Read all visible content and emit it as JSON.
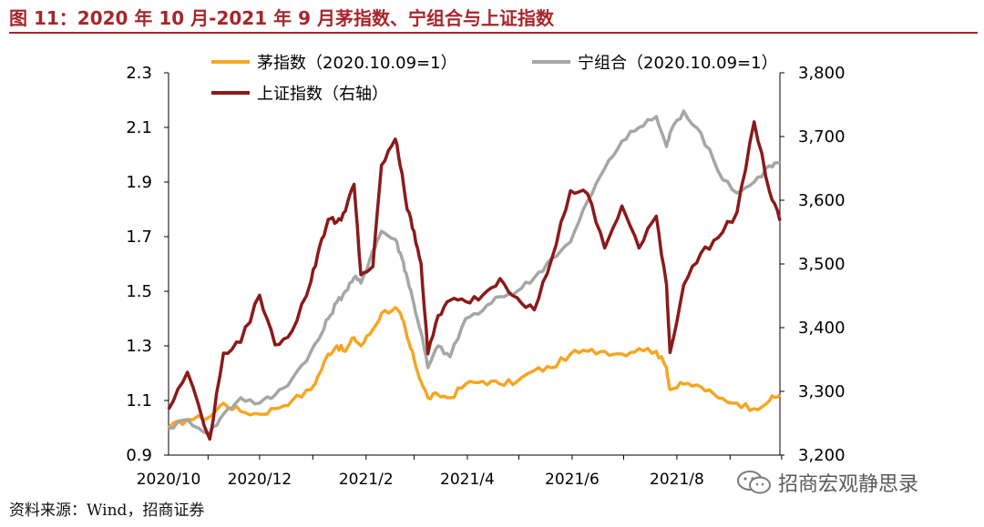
{
  "figure_title": "图 11：2020 年 10 月-2021 年 9 月茅指数、宁组合与上证指数",
  "source": "资料来源：Wind，招商证券",
  "watermark": "招商宏观静思录",
  "colors": {
    "title": "#a6262b",
    "mao": "#f5a623",
    "ning": "#a6a6a6",
    "sh": "#8b1a1a"
  },
  "chart_data": {
    "type": "line",
    "x_ticks": [
      "2020/10",
      "2020/12",
      "2021/2",
      "2021/4",
      "2021/6",
      "2021/8"
    ],
    "x_range": [
      "2020-10-09",
      "2021-09-30"
    ],
    "y_left": {
      "range": [
        0.9,
        2.3
      ],
      "ticks": [
        "0.9",
        "1.1",
        "1.3",
        "1.5",
        "1.7",
        "1.9",
        "2.1",
        "2.3"
      ]
    },
    "y_right": {
      "range": [
        3200,
        3800
      ],
      "ticks": [
        "3,200",
        "3,300",
        "3,400",
        "3,500",
        "3,600",
        "3,700",
        "3,800"
      ]
    },
    "legend_placement": "top",
    "series": [
      {
        "name": "茅指数（2020.10.09=1）",
        "axis": "left",
        "color": "#f5a623",
        "points": [
          [
            "2020-10-09",
            1.0
          ],
          [
            "2020-10-20",
            1.03
          ],
          [
            "2020-11-02",
            1.04
          ],
          [
            "2020-11-10",
            1.09
          ],
          [
            "2020-11-20",
            1.06
          ],
          [
            "2020-12-01",
            1.05
          ],
          [
            "2020-12-10",
            1.07
          ],
          [
            "2020-12-20",
            1.1
          ],
          [
            "2020-12-31",
            1.14
          ],
          [
            "2021-01-05",
            1.2
          ],
          [
            "2021-01-10",
            1.27
          ],
          [
            "2021-01-15",
            1.3
          ],
          [
            "2021-01-20",
            1.28
          ],
          [
            "2021-01-25",
            1.33
          ],
          [
            "2021-01-29",
            1.3
          ],
          [
            "2021-02-05",
            1.36
          ],
          [
            "2021-02-10",
            1.42
          ],
          [
            "2021-02-18",
            1.44
          ],
          [
            "2021-02-22",
            1.4
          ],
          [
            "2021-02-25",
            1.33
          ],
          [
            "2021-03-01",
            1.25
          ],
          [
            "2021-03-05",
            1.17
          ],
          [
            "2021-03-09",
            1.11
          ],
          [
            "2021-03-15",
            1.12
          ],
          [
            "2021-03-22",
            1.11
          ],
          [
            "2021-03-31",
            1.16
          ],
          [
            "2021-04-10",
            1.17
          ],
          [
            "2021-04-20",
            1.16
          ],
          [
            "2021-04-30",
            1.17
          ],
          [
            "2021-05-10",
            1.21
          ],
          [
            "2021-05-20",
            1.22
          ],
          [
            "2021-05-31",
            1.27
          ],
          [
            "2021-06-10",
            1.28
          ],
          [
            "2021-06-20",
            1.28
          ],
          [
            "2021-06-30",
            1.27
          ],
          [
            "2021-07-10",
            1.29
          ],
          [
            "2021-07-20",
            1.28
          ],
          [
            "2021-07-26",
            1.22
          ],
          [
            "2021-07-28",
            1.14
          ],
          [
            "2021-08-05",
            1.16
          ],
          [
            "2021-08-15",
            1.15
          ],
          [
            "2021-08-25",
            1.11
          ],
          [
            "2021-09-05",
            1.09
          ],
          [
            "2021-09-15",
            1.07
          ],
          [
            "2021-09-24",
            1.1
          ],
          [
            "2021-09-30",
            1.12
          ]
        ]
      },
      {
        "name": "宁组合（2020.10.09=1）",
        "axis": "left",
        "color": "#a6a6a6",
        "points": [
          [
            "2020-10-09",
            1.0
          ],
          [
            "2020-10-20",
            1.03
          ],
          [
            "2020-11-02",
            0.98
          ],
          [
            "2020-11-10",
            1.05
          ],
          [
            "2020-11-20",
            1.11
          ],
          [
            "2020-12-01",
            1.09
          ],
          [
            "2020-12-10",
            1.12
          ],
          [
            "2020-12-20",
            1.18
          ],
          [
            "2020-12-31",
            1.28
          ],
          [
            "2021-01-05",
            1.33
          ],
          [
            "2021-01-10",
            1.4
          ],
          [
            "2021-01-15",
            1.46
          ],
          [
            "2021-01-20",
            1.5
          ],
          [
            "2021-01-25",
            1.55
          ],
          [
            "2021-01-29",
            1.53
          ],
          [
            "2021-02-05",
            1.65
          ],
          [
            "2021-02-10",
            1.72
          ],
          [
            "2021-02-18",
            1.69
          ],
          [
            "2021-02-22",
            1.62
          ],
          [
            "2021-02-25",
            1.55
          ],
          [
            "2021-03-01",
            1.45
          ],
          [
            "2021-03-05",
            1.35
          ],
          [
            "2021-03-09",
            1.22
          ],
          [
            "2021-03-15",
            1.3
          ],
          [
            "2021-03-22",
            1.26
          ],
          [
            "2021-03-31",
            1.4
          ],
          [
            "2021-04-10",
            1.43
          ],
          [
            "2021-04-20",
            1.48
          ],
          [
            "2021-04-30",
            1.5
          ],
          [
            "2021-05-10",
            1.55
          ],
          [
            "2021-05-20",
            1.62
          ],
          [
            "2021-05-31",
            1.68
          ],
          [
            "2021-06-10",
            1.83
          ],
          [
            "2021-06-20",
            1.95
          ],
          [
            "2021-06-30",
            2.05
          ],
          [
            "2021-07-10",
            2.1
          ],
          [
            "2021-07-20",
            2.14
          ],
          [
            "2021-07-26",
            2.03
          ],
          [
            "2021-07-28",
            2.08
          ],
          [
            "2021-08-05",
            2.16
          ],
          [
            "2021-08-15",
            2.08
          ],
          [
            "2021-08-25",
            1.94
          ],
          [
            "2021-09-05",
            1.86
          ],
          [
            "2021-09-15",
            1.9
          ],
          [
            "2021-09-24",
            1.96
          ],
          [
            "2021-09-30",
            1.97
          ]
        ]
      },
      {
        "name": "上证指数（右轴）",
        "axis": "right",
        "color": "#8b1a1a",
        "points": [
          [
            "2020-10-09",
            3272
          ],
          [
            "2020-10-20",
            3330
          ],
          [
            "2020-11-02",
            3225
          ],
          [
            "2020-11-10",
            3360
          ],
          [
            "2020-11-20",
            3377
          ],
          [
            "2020-12-01",
            3451
          ],
          [
            "2020-12-10",
            3373
          ],
          [
            "2020-12-20",
            3395
          ],
          [
            "2020-12-31",
            3473
          ],
          [
            "2021-01-05",
            3528
          ],
          [
            "2021-01-10",
            3570
          ],
          [
            "2021-01-15",
            3566
          ],
          [
            "2021-01-20",
            3583
          ],
          [
            "2021-01-25",
            3625
          ],
          [
            "2021-01-29",
            3483
          ],
          [
            "2021-02-05",
            3496
          ],
          [
            "2021-02-10",
            3655
          ],
          [
            "2021-02-18",
            3696
          ],
          [
            "2021-02-22",
            3642
          ],
          [
            "2021-02-25",
            3585
          ],
          [
            "2021-03-01",
            3551
          ],
          [
            "2021-03-05",
            3501
          ],
          [
            "2021-03-09",
            3359
          ],
          [
            "2021-03-15",
            3419
          ],
          [
            "2021-03-22",
            3443
          ],
          [
            "2021-03-31",
            3441
          ],
          [
            "2021-04-10",
            3451
          ],
          [
            "2021-04-20",
            3477
          ],
          [
            "2021-04-30",
            3447
          ],
          [
            "2021-05-10",
            3428
          ],
          [
            "2021-05-20",
            3507
          ],
          [
            "2021-05-31",
            3615
          ],
          [
            "2021-06-10",
            3610
          ],
          [
            "2021-06-20",
            3525
          ],
          [
            "2021-06-30",
            3591
          ],
          [
            "2021-07-10",
            3525
          ],
          [
            "2021-07-20",
            3575
          ],
          [
            "2021-07-26",
            3467
          ],
          [
            "2021-07-28",
            3361
          ],
          [
            "2021-08-05",
            3467
          ],
          [
            "2021-08-15",
            3517
          ],
          [
            "2021-08-25",
            3541
          ],
          [
            "2021-09-05",
            3581
          ],
          [
            "2021-09-15",
            3723
          ],
          [
            "2021-09-24",
            3613
          ],
          [
            "2021-09-30",
            3568
          ]
        ]
      }
    ]
  }
}
